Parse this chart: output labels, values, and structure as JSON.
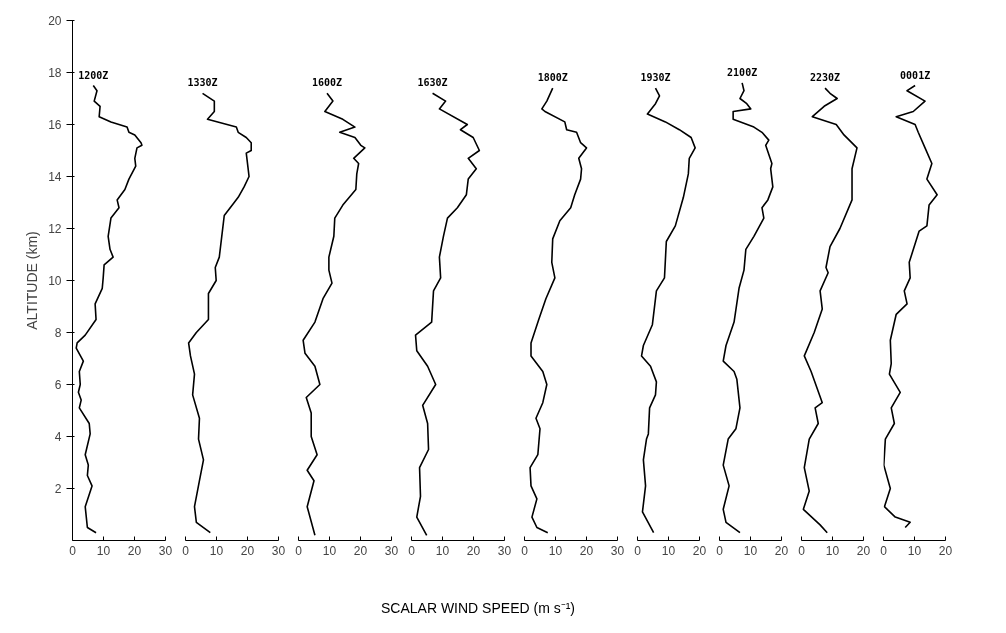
{
  "chart_data": [
    {
      "type": "line",
      "ylabel": "ALTITUDE (km)",
      "xlim": [
        0,
        30
      ],
      "xticks": [
        0,
        10,
        20,
        30
      ],
      "ylim": [
        0,
        20
      ],
      "yticks": [
        2,
        4,
        6,
        8,
        10,
        12,
        14,
        16,
        18,
        20
      ],
      "x": [
        6.7,
        7.9,
        7.0,
        8.9,
        8.6,
        12.4,
        17.6,
        18.2,
        20.1,
        22.1,
        22.4,
        20.8,
        20.1,
        20.4,
        18.2,
        16.9,
        14.4,
        15.0,
        12.4,
        11.5,
        12.1,
        13.1,
        10.2,
        9.9,
        9.6,
        7.3,
        7.6,
        4.1,
        1.5,
        1.2,
        3.5,
        2.2,
        2.5,
        1.9,
        2.8,
        2.2,
        5.4,
        5.7,
        4.1,
        5.1,
        4.8,
        6.3,
        4.1,
        4.8,
        7.6
      ],
      "series": [
        {
          "name": "1200Z",
          "color": "#000000",
          "values": [
            17.5,
            17.3,
            16.9,
            16.7,
            16.3,
            16.1,
            15.9,
            15.7,
            15.6,
            15.3,
            15.2,
            15.1,
            14.7,
            14.4,
            13.9,
            13.5,
            13.1,
            12.8,
            12.4,
            11.7,
            11.2,
            10.9,
            10.6,
            10.1,
            9.7,
            9.1,
            8.5,
            7.9,
            7.6,
            7.4,
            6.9,
            6.5,
            6.0,
            5.7,
            5.4,
            5.1,
            4.5,
            4.1,
            3.3,
            2.9,
            2.5,
            2.1,
            1.3,
            0.5,
            0.3
          ]
        }
      ]
    },
    {
      "type": "line",
      "xlim": [
        0,
        30
      ],
      "xticks": [
        0,
        10,
        20,
        30
      ],
      "ylim": [
        0,
        20
      ],
      "tick_labels": "x",
      "x": [
        5.5,
        9.3,
        9.3,
        7.1,
        16.4,
        17.0,
        19.6,
        21.2,
        21.2,
        19.6,
        20.2,
        20.5,
        18.9,
        17.0,
        15.1,
        12.5,
        11.9,
        10.9,
        9.6,
        9.9,
        7.4,
        7.4,
        3.5,
        1.0,
        1.6,
        2.9,
        2.3,
        4.5,
        4.2,
        5.8,
        4.5,
        2.9,
        3.5,
        8.0
      ],
      "series": [
        {
          "name": "1330Z",
          "color": "#000000",
          "values": [
            17.2,
            16.9,
            16.5,
            16.2,
            15.9,
            15.7,
            15.5,
            15.3,
            15.0,
            14.9,
            14.3,
            14.0,
            13.6,
            13.2,
            12.9,
            12.5,
            11.9,
            10.9,
            10.5,
            10.0,
            9.5,
            8.5,
            8.0,
            7.6,
            7.1,
            6.4,
            5.6,
            4.7,
            3.9,
            3.1,
            2.3,
            1.3,
            0.7,
            0.3
          ]
        }
      ]
    },
    {
      "type": "line",
      "xlim": [
        0,
        30
      ],
      "xticks": [
        0,
        10,
        20,
        30
      ],
      "ylim": [
        0,
        20
      ],
      "tick_labels": "x",
      "x": [
        9.2,
        11.1,
        8.5,
        14.3,
        18.2,
        13.3,
        18.2,
        20.1,
        21.4,
        17.8,
        19.4,
        18.8,
        18.5,
        14.3,
        11.7,
        11.4,
        9.8,
        9.8,
        10.8,
        7.9,
        5.3,
        1.5,
        2.1,
        5.3,
        6.9,
        2.5,
        4.1,
        4.1,
        6.0,
        2.8,
        5.0,
        2.8,
        5.3
      ],
      "series": [
        {
          "name": "1600Z",
          "color": "#000000",
          "values": [
            17.2,
            16.9,
            16.5,
            16.2,
            15.9,
            15.7,
            15.5,
            15.2,
            15.1,
            14.7,
            14.5,
            14.1,
            13.5,
            12.9,
            12.4,
            11.7,
            10.9,
            10.4,
            9.9,
            9.3,
            8.4,
            7.7,
            7.2,
            6.7,
            6.0,
            5.5,
            4.9,
            4.0,
            3.3,
            2.7,
            2.3,
            1.3,
            0.2
          ]
        }
      ]
    },
    {
      "type": "line",
      "xlim": [
        0,
        30
      ],
      "xticks": [
        0,
        10,
        20,
        30
      ],
      "ylim": [
        0,
        20
      ],
      "tick_labels": "x",
      "x": [
        6.8,
        11.0,
        9.0,
        18.0,
        15.8,
        19.9,
        21.9,
        18.3,
        20.9,
        18.3,
        17.7,
        14.8,
        11.6,
        10.3,
        9.0,
        9.4,
        7.1,
        6.5,
        1.3,
        1.7,
        5.2,
        7.8,
        3.6,
        5.2,
        5.5,
        2.6,
        2.9,
        1.7,
        4.9
      ],
      "series": [
        {
          "name": "1630Z",
          "color": "#000000",
          "values": [
            17.2,
            16.9,
            16.6,
            16.0,
            15.8,
            15.5,
            15.0,
            14.7,
            14.3,
            13.9,
            13.3,
            12.8,
            12.4,
            11.7,
            10.9,
            10.1,
            9.6,
            8.4,
            7.9,
            7.3,
            6.7,
            6.0,
            5.2,
            4.5,
            3.5,
            2.8,
            1.7,
            0.9,
            0.2
          ]
        }
      ]
    },
    {
      "type": "line",
      "xlabel": "SCALAR WIND SPEED (m s⁻¹)",
      "xlim": [
        0,
        30
      ],
      "xticks": [
        0,
        10,
        20,
        30
      ],
      "ylim": [
        0,
        20
      ],
      "tick_labels": "x",
      "x": [
        9.1,
        7.2,
        5.6,
        6.6,
        13.0,
        13.6,
        16.8,
        18.1,
        20.0,
        17.5,
        18.4,
        18.1,
        16.2,
        14.9,
        11.4,
        9.1,
        8.8,
        9.8,
        6.9,
        4.6,
        2.1,
        2.1,
        5.9,
        7.2,
        5.9,
        3.7,
        5.0,
        4.3,
        1.8,
        2.1,
        4.0,
        2.4,
        4.0,
        7.5
      ],
      "series": [
        {
          "name": "1800Z",
          "color": "#000000",
          "values": [
            17.4,
            16.9,
            16.6,
            16.5,
            16.1,
            15.8,
            15.7,
            15.3,
            15.1,
            14.7,
            14.3,
            13.9,
            13.3,
            12.8,
            12.3,
            11.6,
            10.7,
            10.1,
            9.3,
            8.5,
            7.6,
            7.1,
            6.5,
            6.0,
            5.3,
            4.7,
            4.3,
            3.3,
            2.8,
            2.1,
            1.6,
            0.9,
            0.5,
            0.3
          ]
        }
      ]
    },
    {
      "type": "line",
      "xlim": [
        0,
        20
      ],
      "xticks": [
        0,
        10,
        20
      ],
      "ylim": [
        0,
        20
      ],
      "tick_labels": "x",
      "x": [
        5.8,
        7.1,
        5.8,
        3.2,
        9.0,
        13.5,
        17.3,
        18.6,
        16.7,
        16.4,
        14.8,
        12.2,
        9.3,
        8.7,
        6.1,
        4.8,
        1.9,
        1.3,
        4.2,
        6.1,
        5.8,
        3.9,
        3.5,
        2.9,
        1.9,
        2.6,
        1.6,
        5.2
      ],
      "series": [
        {
          "name": "1930Z",
          "color": "#000000",
          "values": [
            17.4,
            17.1,
            16.8,
            16.4,
            16.1,
            15.8,
            15.5,
            15.1,
            14.7,
            14.1,
            13.2,
            12.1,
            11.5,
            10.1,
            9.6,
            8.3,
            7.5,
            7.1,
            6.7,
            6.1,
            5.6,
            5.1,
            4.1,
            3.9,
            3.1,
            2.1,
            1.1,
            0.3
          ]
        }
      ]
    },
    {
      "type": "line",
      "xlim": [
        0,
        20
      ],
      "xticks": [
        0,
        10,
        20
      ],
      "ylim": [
        0,
        20
      ],
      "tick_labels": "x",
      "x": [
        7.3,
        7.9,
        6.6,
        8.8,
        10.1,
        4.4,
        4.4,
        11.1,
        13.7,
        15.9,
        14.9,
        16.9,
        16.5,
        17.2,
        15.6,
        13.7,
        14.3,
        11.1,
        8.5,
        7.9,
        6.3,
        4.7,
        2.1,
        1.2,
        4.7,
        5.6,
        6.6,
        5.3,
        2.8,
        1.2,
        3.1,
        1.2,
        2.1,
        6.6
      ],
      "series": [
        {
          "name": "2100Z",
          "color": "#000000",
          "values": [
            17.6,
            17.3,
            17.0,
            16.8,
            16.6,
            16.5,
            16.2,
            15.9,
            15.7,
            15.4,
            15.2,
            14.5,
            14.3,
            13.6,
            13.1,
            12.8,
            12.4,
            11.7,
            11.2,
            10.4,
            9.7,
            8.4,
            7.5,
            6.9,
            6.5,
            6.2,
            5.1,
            4.3,
            3.9,
            2.9,
            2.1,
            1.2,
            0.7,
            0.3
          ]
        }
      ]
    },
    {
      "type": "line",
      "xlim": [
        0,
        20
      ],
      "xticks": [
        0,
        10,
        20
      ],
      "ylim": [
        0,
        20
      ],
      "tick_labels": "x",
      "x": [
        7.6,
        9.2,
        11.5,
        7.3,
        3.5,
        11.2,
        13.7,
        17.9,
        16.3,
        16.3,
        12.4,
        9.2,
        7.9,
        8.6,
        6.0,
        6.7,
        4.1,
        0.9,
        3.1,
        6.7,
        4.4,
        5.4,
        2.5,
        0.9,
        2.5,
        0.6,
        6.0,
        8.3
      ],
      "series": [
        {
          "name": "2230Z",
          "color": "#000000",
          "values": [
            17.4,
            17.2,
            17.0,
            16.7,
            16.3,
            16.0,
            15.6,
            15.1,
            14.3,
            13.1,
            12.0,
            11.3,
            10.5,
            10.3,
            9.6,
            8.9,
            8.0,
            7.1,
            6.5,
            5.3,
            5.1,
            4.5,
            3.9,
            2.8,
            1.9,
            1.2,
            0.6,
            0.3
          ]
        }
      ]
    },
    {
      "type": "line",
      "xlim": [
        0,
        20
      ],
      "xticks": [
        0,
        10,
        20
      ],
      "ylim": [
        0,
        20
      ],
      "tick_labels": "x",
      "x": [
        10.2,
        7.6,
        13.4,
        9.6,
        4.1,
        10.2,
        11.2,
        13.4,
        15.6,
        14.0,
        17.3,
        14.7,
        14.0,
        11.5,
        8.3,
        8.6,
        6.7,
        7.6,
        4.1,
        2.2,
        2.5,
        1.9,
        5.4,
        2.5,
        3.5,
        0.6,
        0.1,
        2.2,
        0.3,
        3.8,
        8.6,
        7.0
      ],
      "series": [
        {
          "name": "0001Z",
          "color": "#000000",
          "values": [
            17.5,
            17.3,
            16.9,
            16.5,
            16.3,
            16.0,
            15.7,
            15.1,
            14.5,
            13.9,
            13.3,
            12.9,
            12.1,
            11.9,
            10.7,
            10.1,
            9.6,
            9.1,
            8.7,
            7.7,
            6.8,
            6.4,
            5.7,
            5.1,
            4.5,
            3.9,
            2.9,
            2.0,
            1.3,
            0.9,
            0.7,
            0.5
          ]
        }
      ]
    }
  ]
}
